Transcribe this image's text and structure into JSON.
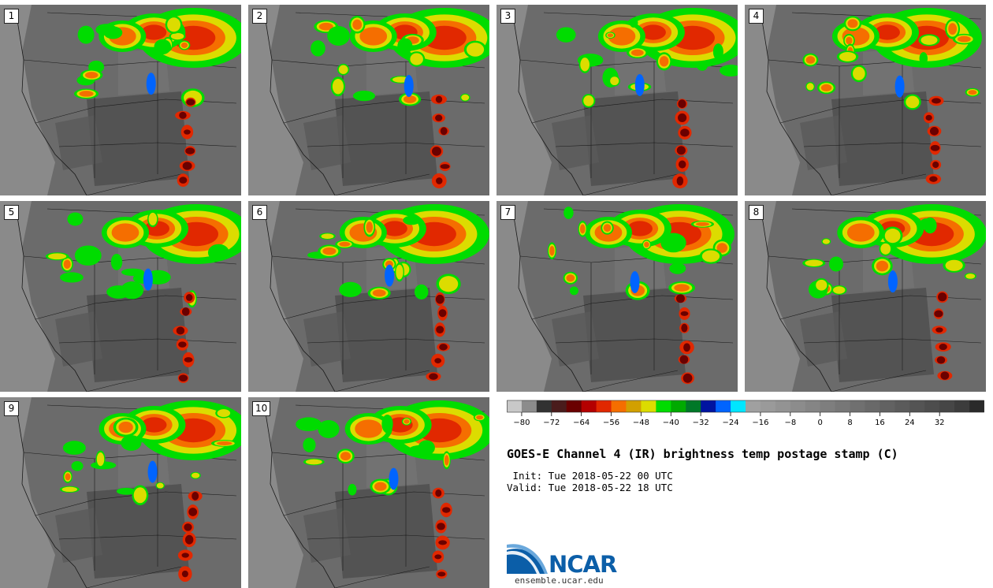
{
  "stamps": [
    {
      "label": "1"
    },
    {
      "label": "2"
    },
    {
      "label": "3"
    },
    {
      "label": "4"
    },
    {
      "label": "5"
    },
    {
      "label": "6"
    },
    {
      "label": "7"
    },
    {
      "label": "8"
    },
    {
      "label": "9"
    },
    {
      "label": "10"
    }
  ],
  "colorbar": {
    "colors": [
      "#c8c8c8",
      "#8c8c8c",
      "#323232",
      "#4a1c1c",
      "#6a0000",
      "#b40000",
      "#e12800",
      "#f56e00",
      "#d2a000",
      "#dcdc00",
      "#00dc00",
      "#00aa00",
      "#007828",
      "#0014a0",
      "#0064ff",
      "#00e6ff",
      "#a0a0a0",
      "#9a9a9a",
      "#939393",
      "#8c8c8c",
      "#858585",
      "#7e7e7e",
      "#777777",
      "#707070",
      "#696969",
      "#626262",
      "#5b5b5b",
      "#545454",
      "#4d4d4d",
      "#464646",
      "#3c3c3c",
      "#2a2a2a"
    ],
    "ticks": [
      "−80",
      "−72",
      "−64",
      "−56",
      "−48",
      "−40",
      "−32",
      "−24",
      "−16",
      "−8",
      "0",
      "8",
      "16",
      "24",
      "32"
    ]
  },
  "title": "GOES-E Channel 4 (IR) brightness temp postage stamp (C)",
  "init_line": " Init: Tue 2018-05-22 00 UTC",
  "valid_line": "Valid: Tue 2018-05-22 18 UTC",
  "logo": {
    "text": "NCAR",
    "site": "ensemble.ucar.edu",
    "icon": "ncar-swoosh-icon"
  },
  "colors": {
    "cold_core": "#e12800",
    "mid": "#f56e00",
    "green": "#00aa00",
    "blue": "#0064ff",
    "background_land": "#5e5e5e"
  }
}
